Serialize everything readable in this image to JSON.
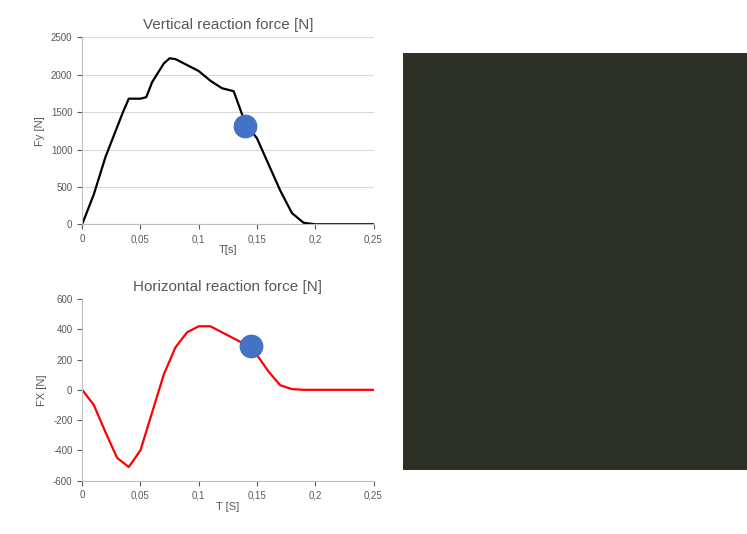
{
  "chart_data": [
    {
      "type": "line",
      "title": "Vertical reaction force [N]",
      "x_label": "T[s]",
      "y_label": "Fy [N]",
      "xlim": [
        0,
        0.25
      ],
      "xticks": [
        0,
        {
          "value": 0.05,
          "label": "0,05"
        },
        {
          "value": 0.1,
          "label": "0,1"
        },
        {
          "value": 0.15,
          "label": "0,15"
        },
        {
          "value": 0.2,
          "label": "0,2"
        },
        {
          "value": 0.25,
          "label": "0,25"
        }
      ],
      "ylim": [
        0,
        2500
      ],
      "yticks": [
        0,
        500,
        1000,
        1500,
        2000,
        2500
      ],
      "grid": true,
      "series": [
        {
          "type": "line",
          "color": "#000000",
          "x": [
            0,
            0.01,
            0.02,
            0.03,
            0.035,
            0.04,
            0.05,
            0.055,
            0.06,
            0.07,
            0.075,
            0.08,
            0.09,
            0.1,
            0.11,
            0.12,
            0.13,
            0.14,
            0.15,
            0.16,
            0.17,
            0.18,
            0.19,
            0.2,
            0.25
          ],
          "values": [
            0,
            400,
            900,
            1300,
            1500,
            1680,
            1680,
            1700,
            1900,
            2150,
            2220,
            2210,
            2130,
            2050,
            1920,
            1820,
            1780,
            1350,
            1150,
            800,
            450,
            150,
            20,
            0,
            0
          ]
        },
        {
          "type": "scatter",
          "color": "#4472c4",
          "marker": "o",
          "x": [
            0.14
          ],
          "values": [
            1320
          ]
        }
      ]
    },
    {
      "type": "line",
      "title": "Horizontal reaction force [N]",
      "x_label": "T [S]",
      "y_label": "FX [N]",
      "xlim": [
        0,
        0.25
      ],
      "xticks": [
        0,
        {
          "value": 0.05,
          "label": "0,05"
        },
        {
          "value": 0.1,
          "label": "0,1"
        },
        {
          "value": 0.15,
          "label": "0,15"
        },
        {
          "value": 0.2,
          "label": "0,2"
        },
        {
          "value": 0.25,
          "label": "0,25"
        }
      ],
      "ylim": [
        -600,
        600
      ],
      "yticks": [
        -600,
        -400,
        -200,
        0,
        200,
        400,
        600
      ],
      "grid": false,
      "series": [
        {
          "type": "line",
          "color": "#ff0000",
          "x": [
            0,
            0.01,
            0.02,
            0.03,
            0.04,
            0.05,
            0.06,
            0.07,
            0.08,
            0.09,
            0.1,
            0.11,
            0.12,
            0.13,
            0.14,
            0.15,
            0.16,
            0.17,
            0.18,
            0.19,
            0.25
          ],
          "values": [
            0,
            -100,
            -280,
            -450,
            -510,
            -400,
            -150,
            100,
            280,
            380,
            420,
            420,
            380,
            340,
            300,
            230,
            120,
            30,
            5,
            0,
            0
          ]
        },
        {
          "type": "scatter",
          "color": "#4472c4",
          "marker": "o",
          "x": [
            0.145
          ],
          "values": [
            290
          ]
        }
      ]
    }
  ]
}
